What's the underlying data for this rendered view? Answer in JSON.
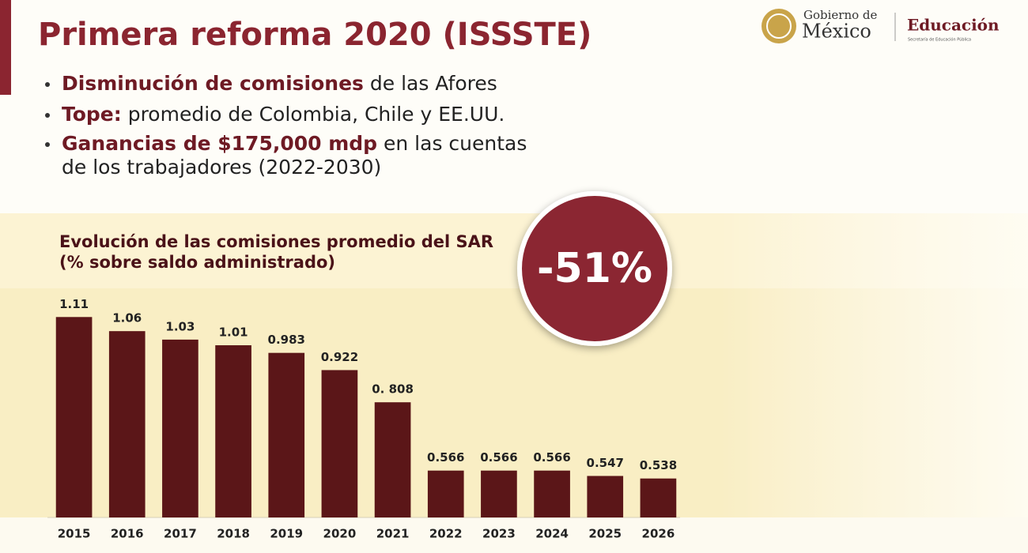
{
  "header": {
    "title": "Primera reforma 2020 (ISSSTE)",
    "bullets": [
      {
        "bold": "Disminución de comisiones",
        "text": " de las Afores"
      },
      {
        "bold": "Tope:",
        "text": " promedio de Colombia, Chile y EE.UU."
      },
      {
        "bold": "Ganancias de $175,000 mdp",
        "text": " en las cuentas",
        "continuation": "de los trabajadores (2022-2030)"
      }
    ]
  },
  "logo": {
    "line1": "Gobierno de",
    "line2": "México",
    "agency": "Educación",
    "agency_sub": "Secretaría de Educación Pública"
  },
  "chart_data": {
    "type": "bar",
    "title": "Evolución de las comisiones promedio del SAR",
    "subtitle": "(% sobre saldo administrado)",
    "annotation": "-51%",
    "categories": [
      "2015",
      "2016",
      "2017",
      "2018",
      "2019",
      "2020",
      "2021",
      "2022",
      "2023",
      "2024",
      "2025",
      "2026"
    ],
    "values": [
      1.11,
      1.06,
      1.03,
      1.01,
      0.983,
      0.922,
      0.808,
      0.566,
      0.566,
      0.566,
      0.547,
      0.538
    ],
    "value_labels": [
      "1.11",
      "1.06",
      "1.03",
      "1.01",
      "0.983",
      "0.922",
      "0. 808",
      "0.566",
      "0.566",
      "0.566",
      "0.547",
      "0.538"
    ],
    "color": "#5b1618",
    "ylim": [
      0.4,
      1.15
    ]
  }
}
